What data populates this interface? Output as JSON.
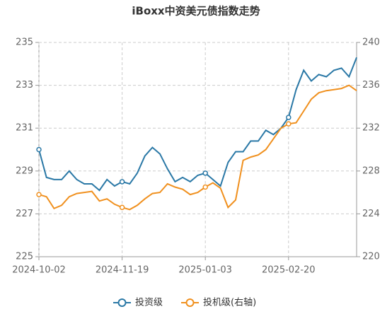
{
  "chart_data": {
    "type": "line",
    "title": "iBoxx中资美元债指数走势",
    "categories": [
      "2024-10-02",
      null,
      null,
      null,
      null,
      null,
      null,
      null,
      null,
      null,
      null,
      "2024-11-19",
      null,
      null,
      null,
      null,
      null,
      null,
      null,
      null,
      null,
      null,
      "2025-01-03",
      null,
      null,
      null,
      null,
      null,
      null,
      null,
      null,
      null,
      null,
      "2025-02-20",
      null,
      null,
      null,
      null,
      null,
      null,
      null,
      null,
      null
    ],
    "series": [
      {
        "name": "投资级",
        "color": "#2a78a6",
        "axis": "y",
        "values": [
          230.0,
          228.7,
          228.6,
          228.6,
          229.0,
          228.6,
          228.4,
          228.4,
          228.1,
          228.6,
          228.3,
          228.5,
          228.4,
          228.9,
          229.7,
          230.1,
          229.8,
          229.1,
          228.5,
          228.7,
          228.5,
          228.8,
          228.9,
          228.6,
          228.3,
          229.4,
          229.9,
          229.9,
          230.4,
          230.4,
          230.9,
          230.7,
          231.0,
          231.5,
          232.8,
          233.7,
          233.2,
          233.5,
          233.4,
          233.7,
          233.8,
          233.4,
          234.3
        ]
      },
      {
        "name": "投机级(右轴)",
        "color": "#f0901e",
        "axis": "y2",
        "values": [
          225.8,
          225.6,
          224.5,
          224.8,
          225.6,
          225.9,
          226.0,
          226.1,
          225.2,
          225.4,
          224.9,
          224.6,
          224.4,
          224.8,
          225.4,
          225.9,
          226.0,
          226.8,
          226.5,
          226.3,
          225.8,
          226.0,
          226.5,
          226.9,
          226.4,
          224.6,
          225.3,
          229.0,
          229.3,
          229.5,
          230.0,
          231.0,
          232.0,
          232.4,
          232.5,
          233.6,
          234.7,
          235.3,
          235.5,
          235.6,
          235.7,
          236.0,
          235.5
        ]
      }
    ],
    "ylim": [
      225,
      235
    ],
    "yticks": [
      225,
      227,
      229,
      231,
      233,
      235
    ],
    "y2lim": [
      220,
      240
    ],
    "y2ticks": [
      220,
      224,
      228,
      232,
      236,
      240
    ],
    "grid": true
  }
}
